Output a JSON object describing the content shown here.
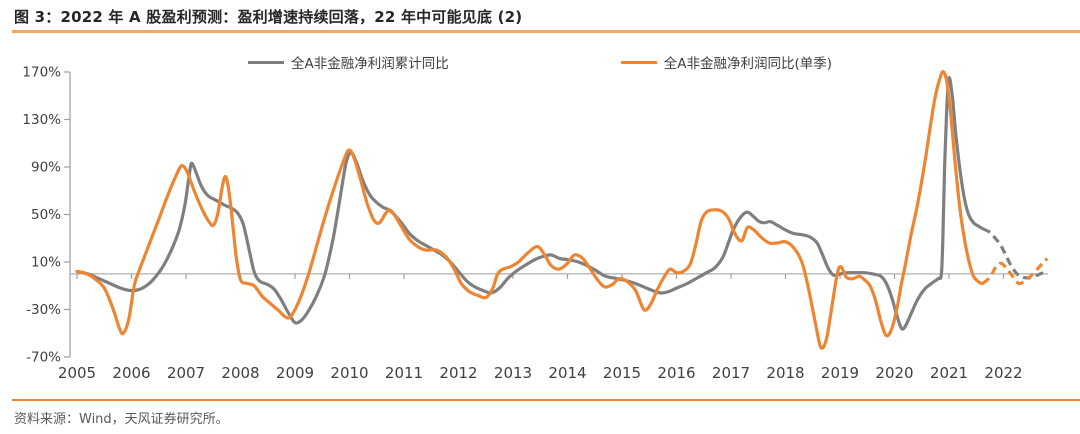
{
  "header": {
    "title": "图 3：2022 年 A 股盈利预测：盈利增速持续回落，22 年中可能见底 (2)"
  },
  "footer": {
    "source": "资料来源：Wind，天风证券研究所。"
  },
  "colors": {
    "accent_rule": "#F2A95C",
    "footer_rule": "#EE8435",
    "axis": "#9e9e9e",
    "tick_text": "#404040",
    "series_gray": "#7F7F7F",
    "series_orange": "#EE8533"
  },
  "chart_data": {
    "type": "line",
    "title": "",
    "xlabel": "",
    "ylabel": "",
    "grid": "zero-line-only",
    "legend_position": "top-center",
    "ylim": [
      -70,
      170
    ],
    "y_tick_values": [
      170,
      130,
      90,
      50,
      10,
      -30,
      -70
    ],
    "y_tick_labels": [
      "170%",
      "130%",
      "90%",
      "50%",
      "10%",
      "-30%",
      "-70%"
    ],
    "x_tick_labels": [
      "2005",
      "2006",
      "2007",
      "2008",
      "2009",
      "2010",
      "2011",
      "2012",
      "2013",
      "2014",
      "2015",
      "2016",
      "2017",
      "2018",
      "2019",
      "2020",
      "2021",
      "2022"
    ],
    "x_first_year": 2005,
    "series": [
      {
        "name": "全A非金融净利润累计同比",
        "color": "#7F7F7F",
        "style": "solid-then-dashed-forecast",
        "forecast_from": 2021.65,
        "points": [
          [
            2005.0,
            2
          ],
          [
            2005.2,
            0
          ],
          [
            2005.4,
            -4
          ],
          [
            2005.6,
            -8
          ],
          [
            2005.8,
            -12
          ],
          [
            2005.98,
            -14
          ],
          [
            2006.15,
            -13
          ],
          [
            2006.3,
            -9
          ],
          [
            2006.45,
            -2
          ],
          [
            2006.6,
            8
          ],
          [
            2006.75,
            22
          ],
          [
            2006.88,
            38
          ],
          [
            2006.98,
            58
          ],
          [
            2007.05,
            80
          ],
          [
            2007.1,
            93
          ],
          [
            2007.18,
            86
          ],
          [
            2007.28,
            74
          ],
          [
            2007.4,
            66
          ],
          [
            2007.55,
            62
          ],
          [
            2007.7,
            58
          ],
          [
            2007.85,
            55
          ],
          [
            2007.95,
            51
          ],
          [
            2008.05,
            42
          ],
          [
            2008.15,
            22
          ],
          [
            2008.25,
            2
          ],
          [
            2008.35,
            -6
          ],
          [
            2008.5,
            -9
          ],
          [
            2008.62,
            -13
          ],
          [
            2008.75,
            -22
          ],
          [
            2008.88,
            -33
          ],
          [
            2009.0,
            -41
          ],
          [
            2009.12,
            -39
          ],
          [
            2009.25,
            -31
          ],
          [
            2009.4,
            -18
          ],
          [
            2009.55,
            0
          ],
          [
            2009.7,
            30
          ],
          [
            2009.82,
            62
          ],
          [
            2009.93,
            92
          ],
          [
            2010.02,
            102
          ],
          [
            2010.12,
            95
          ],
          [
            2010.25,
            78
          ],
          [
            2010.38,
            66
          ],
          [
            2010.5,
            60
          ],
          [
            2010.62,
            56
          ],
          [
            2010.72,
            54
          ],
          [
            2010.82,
            50
          ],
          [
            2010.95,
            43
          ],
          [
            2011.1,
            34
          ],
          [
            2011.25,
            28
          ],
          [
            2011.4,
            24
          ],
          [
            2011.55,
            20
          ],
          [
            2011.7,
            16
          ],
          [
            2011.85,
            10
          ],
          [
            2012.0,
            2
          ],
          [
            2012.15,
            -6
          ],
          [
            2012.3,
            -11
          ],
          [
            2012.45,
            -14
          ],
          [
            2012.6,
            -16
          ],
          [
            2012.75,
            -12
          ],
          [
            2012.9,
            -4
          ],
          [
            2013.05,
            2
          ],
          [
            2013.25,
            8
          ],
          [
            2013.45,
            13
          ],
          [
            2013.68,
            16
          ],
          [
            2013.85,
            13
          ],
          [
            2014.0,
            12
          ],
          [
            2014.2,
            10
          ],
          [
            2014.4,
            6
          ],
          [
            2014.55,
            2
          ],
          [
            2014.7,
            -2
          ],
          [
            2014.9,
            -4
          ],
          [
            2015.1,
            -6
          ],
          [
            2015.3,
            -9
          ],
          [
            2015.5,
            -13
          ],
          [
            2015.7,
            -16
          ],
          [
            2015.85,
            -15
          ],
          [
            2016.0,
            -12
          ],
          [
            2016.2,
            -8
          ],
          [
            2016.4,
            -3
          ],
          [
            2016.55,
            1
          ],
          [
            2016.7,
            5
          ],
          [
            2016.85,
            14
          ],
          [
            2016.95,
            26
          ],
          [
            2017.05,
            38
          ],
          [
            2017.18,
            48
          ],
          [
            2017.3,
            52
          ],
          [
            2017.42,
            48
          ],
          [
            2017.52,
            44
          ],
          [
            2017.62,
            43
          ],
          [
            2017.72,
            44
          ],
          [
            2017.85,
            41
          ],
          [
            2018.0,
            37
          ],
          [
            2018.15,
            34
          ],
          [
            2018.3,
            33
          ],
          [
            2018.45,
            31
          ],
          [
            2018.58,
            26
          ],
          [
            2018.68,
            16
          ],
          [
            2018.78,
            5
          ],
          [
            2018.88,
            -1
          ],
          [
            2019.0,
            0
          ],
          [
            2019.15,
            1
          ],
          [
            2019.3,
            1
          ],
          [
            2019.45,
            1
          ],
          [
            2019.6,
            0
          ],
          [
            2019.75,
            -2
          ],
          [
            2019.85,
            -8
          ],
          [
            2019.95,
            -20
          ],
          [
            2020.05,
            -36
          ],
          [
            2020.13,
            -46
          ],
          [
            2020.2,
            -44
          ],
          [
            2020.3,
            -34
          ],
          [
            2020.42,
            -22
          ],
          [
            2020.55,
            -13
          ],
          [
            2020.68,
            -8
          ],
          [
            2020.8,
            -4
          ],
          [
            2020.86,
            0
          ],
          [
            2020.89,
            35
          ],
          [
            2020.92,
            90
          ],
          [
            2020.96,
            140
          ],
          [
            2021.0,
            165
          ],
          [
            2021.06,
            150
          ],
          [
            2021.12,
            120
          ],
          [
            2021.2,
            88
          ],
          [
            2021.28,
            64
          ],
          [
            2021.36,
            50
          ],
          [
            2021.45,
            43
          ],
          [
            2021.55,
            40
          ],
          [
            2021.62,
            38
          ],
          [
            2021.75,
            35
          ],
          [
            2021.85,
            30
          ],
          [
            2021.95,
            24
          ],
          [
            2022.05,
            15
          ],
          [
            2022.15,
            6
          ],
          [
            2022.25,
            0
          ],
          [
            2022.35,
            -3
          ],
          [
            2022.5,
            -3
          ],
          [
            2022.62,
            -1
          ],
          [
            2022.78,
            2
          ]
        ]
      },
      {
        "name": "全A非金融净利润同比(单季)",
        "color": "#EE8533",
        "style": "solid-then-dashed-forecast",
        "forecast_from": 2021.65,
        "points": [
          [
            2005.0,
            2
          ],
          [
            2005.18,
            0
          ],
          [
            2005.35,
            -5
          ],
          [
            2005.5,
            -12
          ],
          [
            2005.65,
            -28
          ],
          [
            2005.78,
            -46
          ],
          [
            2005.85,
            -50
          ],
          [
            2005.95,
            -38
          ],
          [
            2006.05,
            -10
          ],
          [
            2006.15,
            4
          ],
          [
            2006.3,
            22
          ],
          [
            2006.5,
            46
          ],
          [
            2006.68,
            68
          ],
          [
            2006.82,
            83
          ],
          [
            2006.92,
            91
          ],
          [
            2007.02,
            86
          ],
          [
            2007.15,
            70
          ],
          [
            2007.3,
            54
          ],
          [
            2007.42,
            44
          ],
          [
            2007.5,
            41
          ],
          [
            2007.58,
            50
          ],
          [
            2007.66,
            72
          ],
          [
            2007.72,
            82
          ],
          [
            2007.78,
            72
          ],
          [
            2007.85,
            45
          ],
          [
            2007.92,
            15
          ],
          [
            2008.0,
            -5
          ],
          [
            2008.12,
            -8
          ],
          [
            2008.25,
            -10
          ],
          [
            2008.4,
            -19
          ],
          [
            2008.55,
            -25
          ],
          [
            2008.7,
            -31
          ],
          [
            2008.85,
            -37
          ],
          [
            2008.95,
            -34
          ],
          [
            2009.1,
            -20
          ],
          [
            2009.25,
            0
          ],
          [
            2009.4,
            24
          ],
          [
            2009.55,
            48
          ],
          [
            2009.7,
            70
          ],
          [
            2009.85,
            90
          ],
          [
            2009.98,
            104
          ],
          [
            2010.08,
            98
          ],
          [
            2010.2,
            80
          ],
          [
            2010.32,
            60
          ],
          [
            2010.45,
            45
          ],
          [
            2010.55,
            43
          ],
          [
            2010.65,
            50
          ],
          [
            2010.73,
            54
          ],
          [
            2010.82,
            50
          ],
          [
            2010.95,
            40
          ],
          [
            2011.1,
            29
          ],
          [
            2011.25,
            23
          ],
          [
            2011.4,
            20
          ],
          [
            2011.6,
            20
          ],
          [
            2011.78,
            14
          ],
          [
            2011.92,
            4
          ],
          [
            2012.05,
            -8
          ],
          [
            2012.2,
            -15
          ],
          [
            2012.35,
            -18
          ],
          [
            2012.5,
            -20
          ],
          [
            2012.62,
            -13
          ],
          [
            2012.72,
            0
          ],
          [
            2012.82,
            4
          ],
          [
            2012.95,
            6
          ],
          [
            2013.1,
            10
          ],
          [
            2013.28,
            18
          ],
          [
            2013.45,
            23
          ],
          [
            2013.58,
            16
          ],
          [
            2013.7,
            7
          ],
          [
            2013.85,
            4
          ],
          [
            2014.0,
            9
          ],
          [
            2014.13,
            16
          ],
          [
            2014.28,
            13
          ],
          [
            2014.42,
            4
          ],
          [
            2014.55,
            -5
          ],
          [
            2014.68,
            -11
          ],
          [
            2014.82,
            -9
          ],
          [
            2014.95,
            -4
          ],
          [
            2015.08,
            -6
          ],
          [
            2015.25,
            -14
          ],
          [
            2015.4,
            -30
          ],
          [
            2015.52,
            -26
          ],
          [
            2015.65,
            -13
          ],
          [
            2015.78,
            -2
          ],
          [
            2015.88,
            4
          ],
          [
            2016.0,
            1
          ],
          [
            2016.12,
            2
          ],
          [
            2016.25,
            8
          ],
          [
            2016.35,
            24
          ],
          [
            2016.45,
            44
          ],
          [
            2016.55,
            52
          ],
          [
            2016.68,
            54
          ],
          [
            2016.82,
            53
          ],
          [
            2016.95,
            47
          ],
          [
            2017.08,
            33
          ],
          [
            2017.2,
            28
          ],
          [
            2017.3,
            39
          ],
          [
            2017.42,
            37
          ],
          [
            2017.55,
            31
          ],
          [
            2017.7,
            26
          ],
          [
            2017.85,
            26
          ],
          [
            2018.0,
            27
          ],
          [
            2018.15,
            22
          ],
          [
            2018.3,
            10
          ],
          [
            2018.42,
            -12
          ],
          [
            2018.55,
            -42
          ],
          [
            2018.65,
            -62
          ],
          [
            2018.75,
            -55
          ],
          [
            2018.85,
            -28
          ],
          [
            2018.95,
            0
          ],
          [
            2019.02,
            6
          ],
          [
            2019.12,
            -3
          ],
          [
            2019.24,
            -4
          ],
          [
            2019.35,
            -2
          ],
          [
            2019.45,
            -5
          ],
          [
            2019.55,
            -10
          ],
          [
            2019.65,
            -22
          ],
          [
            2019.75,
            -40
          ],
          [
            2019.85,
            -52
          ],
          [
            2019.95,
            -46
          ],
          [
            2020.05,
            -28
          ],
          [
            2020.12,
            -10
          ],
          [
            2020.2,
            8
          ],
          [
            2020.3,
            32
          ],
          [
            2020.42,
            58
          ],
          [
            2020.55,
            92
          ],
          [
            2020.65,
            122
          ],
          [
            2020.75,
            150
          ],
          [
            2020.85,
            167
          ],
          [
            2020.9,
            170
          ],
          [
            2020.96,
            162
          ],
          [
            2021.02,
            140
          ],
          [
            2021.08,
            110
          ],
          [
            2021.15,
            76
          ],
          [
            2021.22,
            48
          ],
          [
            2021.3,
            25
          ],
          [
            2021.38,
            8
          ],
          [
            2021.45,
            -2
          ],
          [
            2021.55,
            -7
          ],
          [
            2021.62,
            -8
          ],
          [
            2021.75,
            -3
          ],
          [
            2021.85,
            5
          ],
          [
            2021.95,
            9
          ],
          [
            2022.05,
            5
          ],
          [
            2022.15,
            -1
          ],
          [
            2022.25,
            -7
          ],
          [
            2022.32,
            -8
          ],
          [
            2022.45,
            -4
          ],
          [
            2022.6,
            3
          ],
          [
            2022.72,
            9
          ],
          [
            2022.8,
            13
          ]
        ]
      }
    ]
  }
}
